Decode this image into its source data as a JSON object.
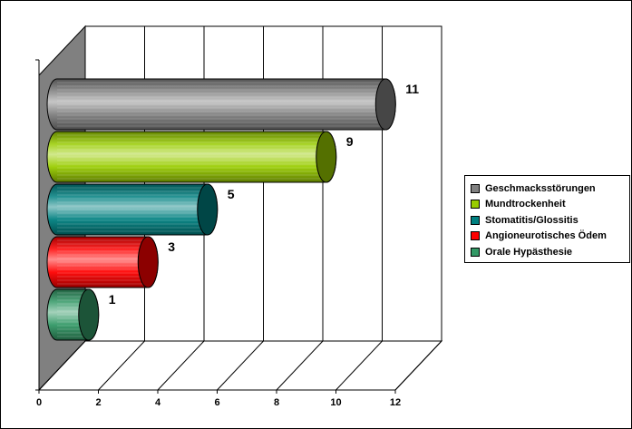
{
  "chart_data": {
    "type": "bar",
    "orientation": "horizontal",
    "style": "3d-cylinder",
    "categories": [
      "Geschmacksstörungen",
      "Mundtrockenheit",
      "Stomatitis/Glossitis",
      "Angioneurotisches Ödem",
      "Orale Hypästhesie"
    ],
    "values": [
      11,
      9,
      5,
      3,
      1
    ],
    "colors": [
      "#808080",
      "#99cc00",
      "#008080",
      "#ff0000",
      "#339966"
    ],
    "xlim": [
      0,
      12
    ],
    "x_ticks": [
      0,
      2,
      4,
      6,
      8,
      10,
      12
    ],
    "grid": true,
    "legend_position": "right",
    "title": "",
    "xlabel": "",
    "ylabel": ""
  }
}
